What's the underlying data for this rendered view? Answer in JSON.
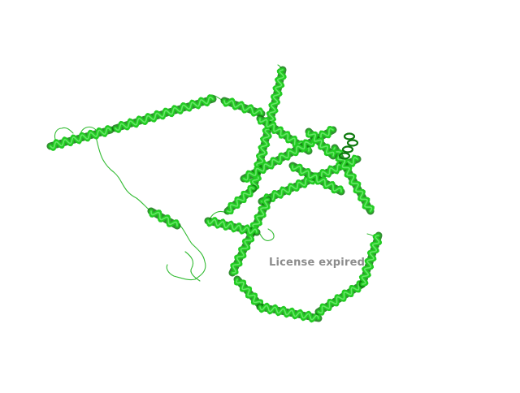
{
  "viewer": {
    "background_color": "#ffffff",
    "watermark_text": "License expired",
    "watermark_color": "#8c8c8c"
  },
  "molecule": {
    "representation": "cartoon",
    "helix_color": "#22cc22",
    "helix_dark_color": "#0e7a0e",
    "helix_light_color": "#6fe86f",
    "loop_color": "#33bb33"
  }
}
